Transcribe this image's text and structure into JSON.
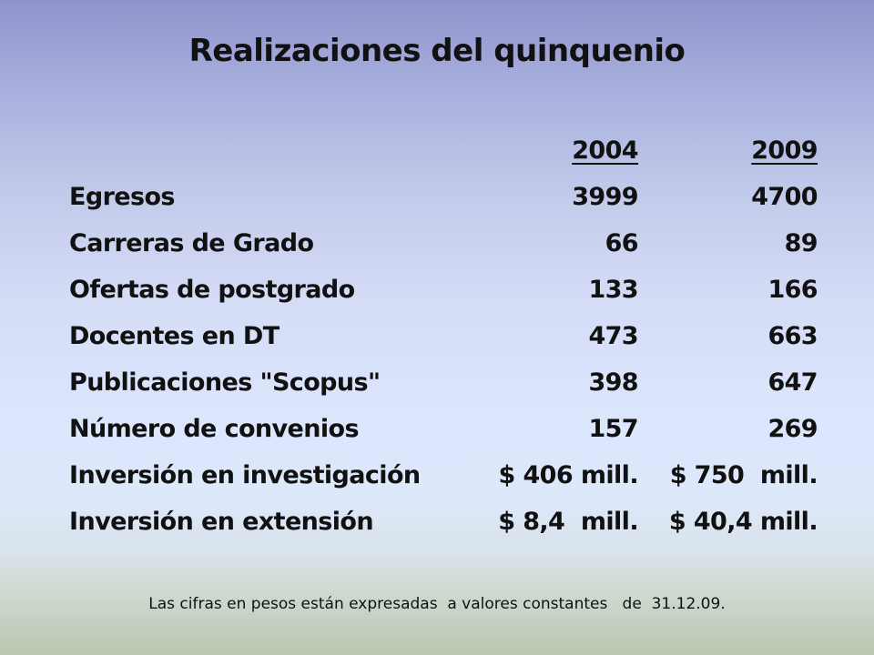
{
  "slide": {
    "title": "Realizaciones del quinquenio",
    "table": {
      "headers": [
        "",
        "2004",
        "2009"
      ],
      "rows": [
        {
          "label": "Egresos",
          "v2004": "3999",
          "v2009": "4700"
        },
        {
          "label": "Carreras de Grado",
          "v2004": "66",
          "v2009": "89"
        },
        {
          "label": "Ofertas de postgrado",
          "v2004": "133",
          "v2009": "166"
        },
        {
          "label": "Docentes en DT",
          "v2004": "473",
          "v2009": "663"
        },
        {
          "label": "Publicaciones \"Scopus\"",
          "v2004": "398",
          "v2009": "647"
        },
        {
          "label": "Número de convenios",
          "v2004": "157",
          "v2009": "269"
        },
        {
          "label": "Inversión en investigación",
          "v2004": "$ 406 mill.",
          "v2009": "$ 750  mill."
        },
        {
          "label": "Inversión en extensión",
          "v2004": "$ 8,4  mill.",
          "v2009": "$ 40,4 mill."
        }
      ]
    },
    "footnote": "Las cifras en pesos están expresadas  a valores constantes   de  31.12.09."
  },
  "colors": {
    "text": "#111111",
    "background_top": "#8f94cd",
    "background_mid": "#dbe5fc",
    "background_bottom": "#b9c8ae"
  }
}
